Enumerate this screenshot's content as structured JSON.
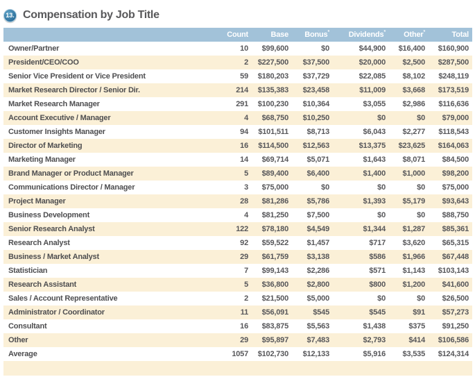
{
  "colors": {
    "header_bg": "#a2c2d9",
    "header_text": "#ffffff",
    "row_bg": "#ffffff",
    "row_alt_bg": "#fbf0d7",
    "badge_bg": "#2c6f9b",
    "title_text": "#58585a",
    "cell_text": "#57575a"
  },
  "chart_data": {
    "type": "table",
    "badge": "13.",
    "title": "Compensation by Job Title",
    "columns": [
      {
        "label": "",
        "sup": ""
      },
      {
        "label": "Count",
        "sup": ""
      },
      {
        "label": "Base",
        "sup": ""
      },
      {
        "label": "Bonus",
        "sup": "*"
      },
      {
        "label": "Dividends",
        "sup": "*"
      },
      {
        "label": "Other",
        "sup": "*"
      },
      {
        "label": "Total",
        "sup": ""
      }
    ],
    "rows": [
      {
        "title": "Owner/Partner",
        "count": "10",
        "base": "$99,600",
        "bonus": "$0",
        "dividends": "$44,900",
        "other": "$16,400",
        "total": "$160,900"
      },
      {
        "title": "President/CEO/COO",
        "count": "2",
        "base": "$227,500",
        "bonus": "$37,500",
        "dividends": "$20,000",
        "other": "$2,500",
        "total": "$287,500"
      },
      {
        "title": "Senior Vice President or Vice President",
        "count": "59",
        "base": "$180,203",
        "bonus": "$37,729",
        "dividends": "$22,085",
        "other": "$8,102",
        "total": "$248,119"
      },
      {
        "title": "Market Research Director / Senior Dir.",
        "count": "214",
        "base": "$135,383",
        "bonus": "$23,458",
        "dividends": "$11,009",
        "other": "$3,668",
        "total": "$173,519"
      },
      {
        "title": "Market Research Manager",
        "count": "291",
        "base": "$100,230",
        "bonus": "$10,364",
        "dividends": "$3,055",
        "other": "$2,986",
        "total": "$116,636"
      },
      {
        "title": "Account Executive / Manager",
        "count": "4",
        "base": "$68,750",
        "bonus": "$10,250",
        "dividends": "$0",
        "other": "$0",
        "total": "$79,000"
      },
      {
        "title": "Customer Insights Manager",
        "count": "94",
        "base": "$101,511",
        "bonus": "$8,713",
        "dividends": "$6,043",
        "other": "$2,277",
        "total": "$118,543"
      },
      {
        "title": "Director of Marketing",
        "count": "16",
        "base": "$114,500",
        "bonus": "$12,563",
        "dividends": "$13,375",
        "other": "$23,625",
        "total": "$164,063"
      },
      {
        "title": "Marketing Manager",
        "count": "14",
        "base": "$69,714",
        "bonus": "$5,071",
        "dividends": "$1,643",
        "other": "$8,071",
        "total": "$84,500"
      },
      {
        "title": "Brand Manager or Product Manager",
        "count": "5",
        "base": "$89,400",
        "bonus": "$6,400",
        "dividends": "$1,400",
        "other": "$1,000",
        "total": "$98,200"
      },
      {
        "title": "Communications Director / Manager",
        "count": "3",
        "base": "$75,000",
        "bonus": "$0",
        "dividends": "$0",
        "other": "$0",
        "total": "$75,000"
      },
      {
        "title": "Project Manager",
        "count": "28",
        "base": "$81,286",
        "bonus": "$5,786",
        "dividends": "$1,393",
        "other": "$5,179",
        "total": "$93,643"
      },
      {
        "title": "Business Development",
        "count": "4",
        "base": "$81,250",
        "bonus": "$7,500",
        "dividends": "$0",
        "other": "$0",
        "total": "$88,750"
      },
      {
        "title": "Senior Research Analyst",
        "count": "122",
        "base": "$78,180",
        "bonus": "$4,549",
        "dividends": "$1,344",
        "other": "$1,287",
        "total": "$85,361"
      },
      {
        "title": "Research Analyst",
        "count": "92",
        "base": "$59,522",
        "bonus": "$1,457",
        "dividends": "$717",
        "other": "$3,620",
        "total": "$65,315"
      },
      {
        "title": "Business / Market Analyst",
        "count": "29",
        "base": "$61,759",
        "bonus": "$3,138",
        "dividends": "$586",
        "other": "$1,966",
        "total": "$67,448"
      },
      {
        "title": "Statistician",
        "count": "7",
        "base": "$99,143",
        "bonus": "$2,286",
        "dividends": "$571",
        "other": "$1,143",
        "total": "$103,143"
      },
      {
        "title": "Research Assistant",
        "count": "5",
        "base": "$36,800",
        "bonus": "$2,800",
        "dividends": "$800",
        "other": "$1,200",
        "total": "$41,600"
      },
      {
        "title": "Sales / Account Representative",
        "count": "2",
        "base": "$21,500",
        "bonus": "$5,000",
        "dividends": "$0",
        "other": "$0",
        "total": "$26,500"
      },
      {
        "title": "Administrator / Coordinator",
        "count": "11",
        "base": "$56,091",
        "bonus": "$545",
        "dividends": "$545",
        "other": "$91",
        "total": "$57,273"
      },
      {
        "title": "Consultant",
        "count": "16",
        "base": "$83,875",
        "bonus": "$5,563",
        "dividends": "$1,438",
        "other": "$375",
        "total": "$91,250"
      },
      {
        "title": "Other",
        "count": "29",
        "base": "$95,897",
        "bonus": "$7,483",
        "dividends": "$2,793",
        "other": "$414",
        "total": "$106,586"
      },
      {
        "title": "Average",
        "count": "1057",
        "base": "$102,730",
        "bonus": "$12,133",
        "dividends": "$5,916",
        "other": "$3,535",
        "total": "$124,314"
      }
    ]
  }
}
